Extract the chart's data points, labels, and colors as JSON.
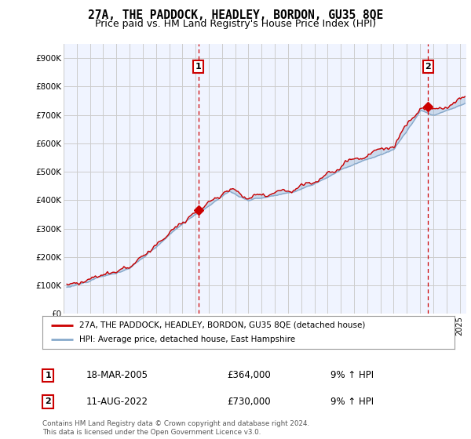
{
  "title": "27A, THE PADDOCK, HEADLEY, BORDON, GU35 8QE",
  "subtitle": "Price paid vs. HM Land Registry's House Price Index (HPI)",
  "ylabel_ticks": [
    "£0",
    "£100K",
    "£200K",
    "£300K",
    "£400K",
    "£500K",
    "£600K",
    "£700K",
    "£800K",
    "£900K"
  ],
  "ytick_vals": [
    0,
    100000,
    200000,
    300000,
    400000,
    500000,
    600000,
    700000,
    800000,
    900000
  ],
  "ylim": [
    0,
    950000
  ],
  "xlim_start": 1995.25,
  "xlim_end": 2025.5,
  "red_color": "#cc0000",
  "blue_color": "#88aacc",
  "fill_color": "#ddeeff",
  "grid_color": "#cccccc",
  "background_color": "#ffffff",
  "plot_bg_color": "#f0f4ff",
  "sale1_x": 2005.21,
  "sale1_y": 364000,
  "sale1_label": "1",
  "sale2_x": 2022.61,
  "sale2_y": 730000,
  "sale2_label": "2",
  "legend_line1": "27A, THE PADDOCK, HEADLEY, BORDON, GU35 8QE (detached house)",
  "legend_line2": "HPI: Average price, detached house, East Hampshire",
  "annotation1_date": "18-MAR-2005",
  "annotation1_price": "£364,000",
  "annotation1_hpi": "9% ↑ HPI",
  "annotation2_date": "11-AUG-2022",
  "annotation2_price": "£730,000",
  "annotation2_hpi": "9% ↑ HPI",
  "footer": "Contains HM Land Registry data © Crown copyright and database right 2024.\nThis data is licensed under the Open Government Licence v3.0.",
  "title_fontsize": 10.5,
  "subtitle_fontsize": 9
}
